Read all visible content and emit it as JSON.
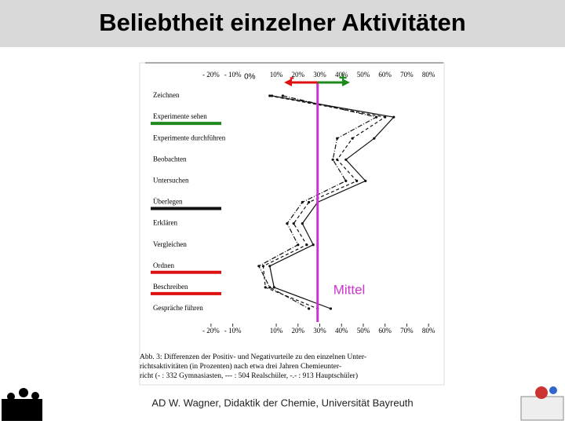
{
  "title": "Beliebtheit einzelner Aktivitäten",
  "footer": "AD W. Wagner, Didaktik der Chemie, Universität Bayreuth",
  "chart_data": {
    "type": "line",
    "categories": [
      "Zeichnen",
      "Experimente sehen",
      "Experimente durchführen",
      "Beobachten",
      "Untersuchen",
      "Überlegen",
      "Erklären",
      "Vergleichen",
      "Ordnen",
      "Beschreiben",
      "Gespräche führen"
    ],
    "series": [
      {
        "name": "332 Gymnasiasten",
        "color": "#111111",
        "dash": "none",
        "values": [
          8,
          64,
          55,
          42,
          51,
          29,
          22,
          27,
          7,
          9,
          35
        ]
      },
      {
        "name": "504 Realschüler",
        "color": "#111111",
        "dash": "4 3",
        "values": [
          7,
          60,
          45,
          38,
          47,
          25,
          18,
          24,
          4,
          5,
          29
        ]
      },
      {
        "name": "913 Hauptschüler",
        "color": "#111111",
        "dash": "6 2 1 2",
        "values": [
          13,
          56,
          38,
          36,
          42,
          22,
          15,
          20,
          2,
          7,
          25
        ]
      }
    ],
    "xlim": [
      -25,
      85
    ],
    "xticks": [
      {
        "value": -20,
        "label": "- 20%"
      },
      {
        "value": -10,
        "label": "- 10%"
      },
      {
        "value": 10,
        "label": "10%"
      },
      {
        "value": 20,
        "label": "20%"
      },
      {
        "value": 30,
        "label": "30%"
      },
      {
        "value": 40,
        "label": "40%"
      },
      {
        "value": 50,
        "label": "50%"
      },
      {
        "value": 60,
        "label": "60%"
      },
      {
        "value": 70,
        "label": "70%"
      },
      {
        "value": 80,
        "label": "80%"
      }
    ],
    "zero_label": "0%",
    "mean": {
      "value": 29,
      "label": "Mittel",
      "color": "#cc33cc"
    },
    "minus_label": "-",
    "plus_label": "+",
    "highlights": [
      {
        "index": 1,
        "color": "#1e8a1e"
      },
      {
        "index": 5,
        "color": "#111111"
      },
      {
        "index": 8,
        "color": "#dd1111"
      },
      {
        "index": 9,
        "color": "#dd1111"
      }
    ],
    "caption": [
      "Abb. 3: Differenzen der Positiv- und Negativurteile zu den einzelnen Unter-",
      "richtsaktivitäten (in Prozenten) nach etwa drei Jahren Chemieunter-"
    ],
    "caption_parts": [
      "richt (- : ",
      ", --- : ",
      ", -.- : ",
      ")"
    ]
  }
}
